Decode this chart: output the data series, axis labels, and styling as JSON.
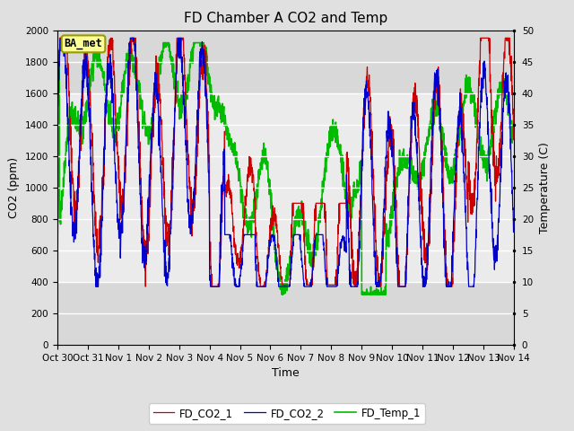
{
  "title": "FD Chamber A CO2 and Temp",
  "xlabel": "Time",
  "ylabel_left": "CO2 (ppm)",
  "ylabel_right": "Temperature (C)",
  "legend_labels": [
    "FD_CO2_1",
    "FD_CO2_2",
    "FD_Temp_1"
  ],
  "line_colors": [
    "#cc0000",
    "#0000cc",
    "#00bb00"
  ],
  "co2_ylim": [
    0,
    2000
  ],
  "temp_ylim": [
    0,
    50
  ],
  "co2_yticks": [
    0,
    200,
    400,
    600,
    800,
    1000,
    1200,
    1400,
    1600,
    1800,
    2000
  ],
  "temp_yticks": [
    0,
    5,
    10,
    15,
    20,
    25,
    30,
    35,
    40,
    45,
    50
  ],
  "x_labels": [
    "Oct 30",
    "Oct 31",
    "Nov 1",
    "Nov 2",
    "Nov 3",
    "Nov 4",
    "Nov 5",
    "Nov 6",
    "Nov 7",
    "Nov 8",
    "Nov 9",
    "Nov 10",
    "Nov 11",
    "Nov 12",
    "Nov 13",
    "Nov 14"
  ],
  "fig_bg": "#e0e0e0",
  "plot_bg": "#ebebeb",
  "band_bottom_color": "#d8d8d8",
  "grid_color": "#ffffff",
  "annotation_text": "BA_met",
  "annotation_bg": "#ffff99",
  "annotation_border": "#999900",
  "linewidth_co2": 0.9,
  "linewidth_temp": 1.2,
  "title_fontsize": 11,
  "axis_fontsize": 9,
  "tick_fontsize": 7.5,
  "legend_fontsize": 8.5
}
